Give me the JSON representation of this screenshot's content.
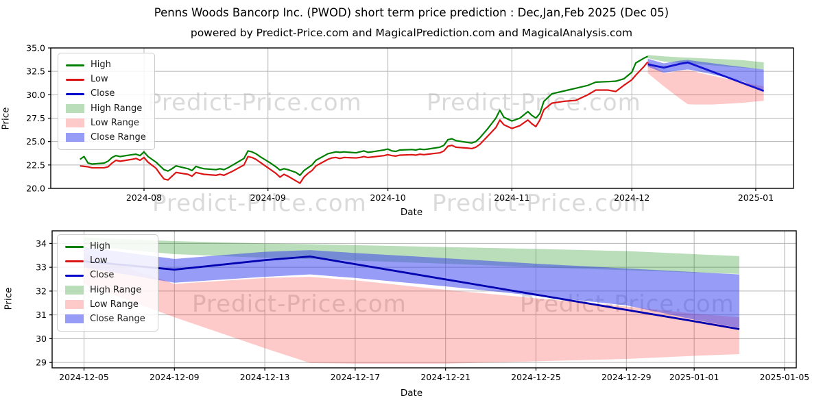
{
  "title": "Penns Woods Bancorp Inc. (PWOD) short term price prediction : Dec,Jan,Feb 2025 (Dec 05)",
  "subtitle": "powered by Predict-Price.com and MagicalPrediction.com and MagicalAnalysis.com",
  "watermark_text": "Predict-Price.com",
  "colors": {
    "high_line": "#007f00",
    "low_line": "#dc1414",
    "close_line_top": "#1212d0",
    "close_line_bottom": "#0000b0",
    "high_fill": "rgba(0,128,0,0.27)",
    "low_fill": "rgba(250,45,45,0.26)",
    "close_fill": "rgba(48,58,238,0.5)",
    "grid": "#b4b4b4",
    "spine": "#000000"
  },
  "legend": {
    "items": [
      {
        "label": "High",
        "type": "line",
        "color": "#007f00"
      },
      {
        "label": "Low",
        "type": "line",
        "color": "#dc1414"
      },
      {
        "label": "Close",
        "type": "line",
        "color": "#0000cc"
      },
      {
        "label": "High Range",
        "type": "patch",
        "color": "rgba(0,128,0,0.27)"
      },
      {
        "label": "Low Range",
        "type": "patch",
        "color": "rgba(250,45,45,0.26)"
      },
      {
        "label": "Close Range",
        "type": "patch",
        "color": "rgba(48,58,238,0.5)"
      }
    ]
  },
  "history_start_date": "2024-07-16",
  "history": [
    [
      0,
      23.1,
      22.4
    ],
    [
      1,
      23.4,
      22.35
    ],
    [
      2,
      22.7,
      22.3
    ],
    [
      3,
      22.6,
      22.2
    ],
    [
      6,
      22.7,
      22.2
    ],
    [
      7,
      22.9,
      22.3
    ],
    [
      8,
      23.3,
      22.7
    ],
    [
      9,
      23.5,
      23.0
    ],
    [
      10,
      23.4,
      22.9
    ],
    [
      13,
      23.6,
      23.1
    ],
    [
      14,
      23.65,
      23.2
    ],
    [
      15,
      23.5,
      23.0
    ],
    [
      16,
      23.9,
      23.3
    ],
    [
      17,
      23.4,
      22.8
    ],
    [
      19,
      22.8,
      22.15
    ],
    [
      20,
      22.4,
      21.55
    ],
    [
      21,
      22.0,
      21.0
    ],
    [
      22,
      21.85,
      20.9
    ],
    [
      23,
      22.1,
      21.3
    ],
    [
      24,
      22.4,
      21.7
    ],
    [
      27,
      22.1,
      21.5
    ],
    [
      28,
      21.9,
      21.3
    ],
    [
      29,
      22.35,
      21.7
    ],
    [
      30,
      22.2,
      21.6
    ],
    [
      31,
      22.1,
      21.5
    ],
    [
      34,
      22.0,
      21.4
    ],
    [
      35,
      22.1,
      21.5
    ],
    [
      36,
      22.0,
      21.4
    ],
    [
      37,
      22.2,
      21.6
    ],
    [
      38,
      22.45,
      21.8
    ],
    [
      41,
      23.2,
      22.5
    ],
    [
      42,
      24.0,
      23.4
    ],
    [
      43,
      23.9,
      23.3
    ],
    [
      44,
      23.7,
      23.1
    ],
    [
      45,
      23.4,
      22.8
    ],
    [
      48,
      22.6,
      21.9
    ],
    [
      49,
      22.3,
      21.6
    ],
    [
      50,
      21.95,
      21.2
    ],
    [
      51,
      22.1,
      21.5
    ],
    [
      52,
      22.0,
      21.3
    ],
    [
      54,
      21.7,
      20.8
    ],
    [
      55,
      21.4,
      20.55
    ],
    [
      56,
      21.9,
      21.2
    ],
    [
      57,
      22.2,
      21.6
    ],
    [
      58,
      22.5,
      21.9
    ],
    [
      59,
      23.0,
      22.4
    ],
    [
      62,
      23.7,
      23.1
    ],
    [
      63,
      23.8,
      23.25
    ],
    [
      64,
      23.9,
      23.3
    ],
    [
      65,
      23.85,
      23.2
    ],
    [
      66,
      23.9,
      23.3
    ],
    [
      69,
      23.8,
      23.25
    ],
    [
      70,
      23.9,
      23.3
    ],
    [
      71,
      24.0,
      23.4
    ],
    [
      72,
      23.85,
      23.3
    ],
    [
      73,
      23.9,
      23.35
    ],
    [
      76,
      24.1,
      23.5
    ],
    [
      77,
      24.2,
      23.6
    ],
    [
      78,
      24.0,
      23.5
    ],
    [
      79,
      23.95,
      23.45
    ],
    [
      80,
      24.1,
      23.55
    ],
    [
      83,
      24.15,
      23.6
    ],
    [
      84,
      24.1,
      23.55
    ],
    [
      85,
      24.2,
      23.65
    ],
    [
      86,
      24.15,
      23.6
    ],
    [
      87,
      24.2,
      23.65
    ],
    [
      90,
      24.4,
      23.8
    ],
    [
      91,
      24.6,
      24.0
    ],
    [
      92,
      25.2,
      24.5
    ],
    [
      93,
      25.3,
      24.6
    ],
    [
      94,
      25.1,
      24.4
    ],
    [
      97,
      24.9,
      24.3
    ],
    [
      98,
      24.85,
      24.25
    ],
    [
      99,
      25.0,
      24.4
    ],
    [
      100,
      25.4,
      24.7
    ],
    [
      102,
      26.4,
      25.6
    ],
    [
      104,
      27.5,
      26.5
    ],
    [
      105,
      28.35,
      27.3
    ],
    [
      106,
      27.6,
      26.8
    ],
    [
      108,
      27.2,
      26.4
    ],
    [
      110,
      27.5,
      26.7
    ],
    [
      112,
      28.2,
      27.3
    ],
    [
      113,
      27.8,
      26.9
    ],
    [
      114,
      27.5,
      26.6
    ],
    [
      115,
      28.0,
      27.3
    ],
    [
      116,
      29.3,
      28.4
    ],
    [
      118,
      30.1,
      29.1
    ],
    [
      121,
      30.4,
      29.3
    ],
    [
      124,
      30.7,
      29.4
    ],
    [
      127,
      31.0,
      30.0
    ],
    [
      129,
      31.35,
      30.5
    ],
    [
      132,
      31.4,
      30.5
    ],
    [
      134,
      31.45,
      30.35
    ],
    [
      136,
      31.7,
      31.0
    ],
    [
      138,
      32.4,
      31.6
    ],
    [
      139,
      33.4,
      32.1
    ],
    [
      141,
      33.9,
      33.0
    ],
    [
      142,
      34.1,
      33.5
    ]
  ],
  "prediction": {
    "start_date": "2024-12-05",
    "end_date": "2025-01-03",
    "offsets": [
      0,
      4,
      8,
      10,
      12,
      16,
      20,
      24,
      27,
      29
    ],
    "close": [
      33.25,
      32.9,
      33.3,
      33.45,
      33.13,
      32.49,
      31.85,
      31.21,
      30.73,
      30.4
    ],
    "high_upper": [
      34.25,
      34.1,
      34.0,
      33.97,
      33.93,
      33.85,
      33.77,
      33.68,
      33.55,
      33.47
    ],
    "high_lower": [
      33.9,
      33.55,
      33.4,
      33.35,
      33.28,
      33.15,
      33.0,
      32.88,
      32.78,
      32.72
    ],
    "close_upper": [
      33.85,
      33.35,
      33.65,
      33.72,
      33.6,
      33.38,
      33.15,
      32.95,
      32.8,
      32.7
    ],
    "close_lower": [
      33.0,
      32.35,
      32.6,
      32.7,
      32.55,
      32.2,
      31.8,
      31.4,
      30.8,
      30.45
    ],
    "low_upper": [
      33.6,
      32.3,
      32.55,
      32.6,
      32.45,
      32.05,
      31.7,
      31.35,
      31.05,
      30.9
    ],
    "low_lower": [
      32.3,
      30.9,
      29.6,
      28.98,
      28.95,
      28.95,
      29.05,
      29.15,
      29.28,
      29.35
    ]
  },
  "chart_data": [
    {
      "type": "line",
      "xlabel": "Date",
      "ylabel": "Price",
      "ylim": [
        20.0,
        35.0
      ],
      "x_ticks": [
        {
          "label": "2024-08",
          "day": 16
        },
        {
          "label": "2024-09",
          "day": 47
        },
        {
          "label": "2024-10",
          "day": 77
        },
        {
          "label": "2024-11",
          "day": 108
        },
        {
          "label": "2024-12",
          "day": 138
        },
        {
          "label": "2025-01",
          "day": 169
        }
      ],
      "y_ticks": [
        {
          "label": "35.0",
          "value": 35.0
        },
        {
          "label": "32.5",
          "value": 32.5
        },
        {
          "label": "30.0",
          "value": 30.0
        },
        {
          "label": "27.5",
          "value": 27.5
        },
        {
          "label": "25.0",
          "value": 25.0
        },
        {
          "label": "22.5",
          "value": 22.5
        },
        {
          "label": "20.0",
          "value": 20.0
        }
      ]
    },
    {
      "type": "line",
      "xlabel": "Date",
      "ylabel": "Price",
      "ylim": [
        28.8,
        34.5
      ],
      "x_ticks": [
        {
          "label": "2024-12-05",
          "day": 0
        },
        {
          "label": "2024-12-09",
          "day": 4
        },
        {
          "label": "2024-12-13",
          "day": 8
        },
        {
          "label": "2024-12-17",
          "day": 12
        },
        {
          "label": "2024-12-21",
          "day": 16
        },
        {
          "label": "2024-12-25",
          "day": 20
        },
        {
          "label": "2024-12-29",
          "day": 24
        },
        {
          "label": "2025-01-01",
          "day": 27
        },
        {
          "label": "2025-01-05",
          "day": 31
        }
      ],
      "y_ticks": [
        {
          "label": "34",
          "value": 34
        },
        {
          "label": "33",
          "value": 33
        },
        {
          "label": "32",
          "value": 32
        },
        {
          "label": "31",
          "value": 31
        },
        {
          "label": "30",
          "value": 30
        },
        {
          "label": "29",
          "value": 29
        }
      ]
    }
  ]
}
